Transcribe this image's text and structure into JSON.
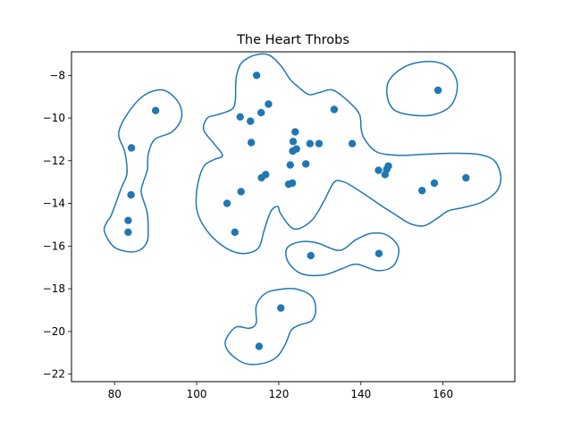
{
  "chart_data": {
    "type": "scatter",
    "title": "The Heart Throbs",
    "xlabel": "",
    "ylabel": "",
    "xlim": [
      69.5,
      177.5
    ],
    "ylim": [
      -22.35,
      -6.9
    ],
    "xticks": [
      80,
      100,
      120,
      140,
      160
    ],
    "yticks": [
      -8,
      -10,
      -12,
      -14,
      -16,
      -18,
      -20,
      -22
    ],
    "grid": false,
    "point_color": "#1f77b4",
    "contour_color": "#1f77b4",
    "points": [
      {
        "x": 114.6,
        "y": -8.0
      },
      {
        "x": 90.0,
        "y": -9.65
      },
      {
        "x": 158.8,
        "y": -8.7
      },
      {
        "x": 110.6,
        "y": -9.95
      },
      {
        "x": 113.1,
        "y": -10.15
      },
      {
        "x": 115.7,
        "y": -9.75
      },
      {
        "x": 117.5,
        "y": -9.35
      },
      {
        "x": 133.5,
        "y": -9.6
      },
      {
        "x": 84.1,
        "y": -11.4
      },
      {
        "x": 113.3,
        "y": -11.15
      },
      {
        "x": 124.0,
        "y": -10.65
      },
      {
        "x": 123.5,
        "y": -11.1
      },
      {
        "x": 123.4,
        "y": -11.55
      },
      {
        "x": 124.3,
        "y": -11.45
      },
      {
        "x": 127.6,
        "y": -11.2
      },
      {
        "x": 129.8,
        "y": -11.2
      },
      {
        "x": 137.9,
        "y": -11.2
      },
      {
        "x": 122.8,
        "y": -12.2
      },
      {
        "x": 126.6,
        "y": -12.15
      },
      {
        "x": 146.7,
        "y": -12.25
      },
      {
        "x": 146.3,
        "y": -12.4
      },
      {
        "x": 144.3,
        "y": -12.45
      },
      {
        "x": 145.9,
        "y": -12.65
      },
      {
        "x": 116.8,
        "y": -12.65
      },
      {
        "x": 115.8,
        "y": -12.8
      },
      {
        "x": 123.3,
        "y": -13.05
      },
      {
        "x": 122.4,
        "y": -13.1
      },
      {
        "x": 157.9,
        "y": -13.05
      },
      {
        "x": 165.6,
        "y": -12.8
      },
      {
        "x": 154.9,
        "y": -13.4
      },
      {
        "x": 84.0,
        "y": -13.6
      },
      {
        "x": 110.8,
        "y": -13.45
      },
      {
        "x": 107.4,
        "y": -14.0
      },
      {
        "x": 83.3,
        "y": -14.8
      },
      {
        "x": 83.3,
        "y": -15.35
      },
      {
        "x": 109.3,
        "y": -15.35
      },
      {
        "x": 127.8,
        "y": -16.45
      },
      {
        "x": 144.4,
        "y": -16.35
      },
      {
        "x": 120.5,
        "y": -18.9
      },
      {
        "x": 115.2,
        "y": -20.7
      }
    ],
    "contours": [
      [
        [
          79.2,
          -14.55
        ],
        [
          81.6,
          -13.3
        ],
        [
          83.0,
          -12.6
        ],
        [
          82.5,
          -11.6
        ],
        [
          81.0,
          -10.7
        ],
        [
          83.5,
          -9.7
        ],
        [
          87.5,
          -8.9
        ],
        [
          92.0,
          -8.7
        ],
        [
          95.5,
          -9.25
        ],
        [
          96.3,
          -10.0
        ],
        [
          94.0,
          -10.65
        ],
        [
          89.8,
          -11.0
        ],
        [
          88.2,
          -11.7
        ],
        [
          88.0,
          -12.4
        ],
        [
          87.0,
          -13.0
        ],
        [
          86.5,
          -13.5
        ],
        [
          87.9,
          -14.4
        ],
        [
          88.2,
          -15.2
        ],
        [
          87.9,
          -15.8
        ],
        [
          86.0,
          -16.2
        ],
        [
          82.8,
          -16.25
        ],
        [
          79.6,
          -16.0
        ],
        [
          77.5,
          -15.3
        ],
        [
          78.2,
          -14.85
        ],
        [
          79.2,
          -14.55
        ]
      ],
      [
        [
          147.0,
          -8.2
        ],
        [
          151.2,
          -7.55
        ],
        [
          157.0,
          -7.35
        ],
        [
          161.5,
          -7.65
        ],
        [
          163.5,
          -8.45
        ],
        [
          162.0,
          -9.4
        ],
        [
          157.5,
          -9.85
        ],
        [
          152.0,
          -9.85
        ],
        [
          148.0,
          -9.6
        ],
        [
          146.4,
          -8.95
        ],
        [
          147.0,
          -8.2
        ]
      ],
      [
        [
          108.5,
          -9.6
        ],
        [
          109.4,
          -9.2
        ],
        [
          109.5,
          -8.45
        ],
        [
          109.8,
          -7.95
        ],
        [
          111.0,
          -7.4
        ],
        [
          114.2,
          -7.05
        ],
        [
          117.6,
          -7.05
        ],
        [
          120.5,
          -7.55
        ],
        [
          122.8,
          -8.2
        ],
        [
          124.8,
          -8.55
        ],
        [
          127.3,
          -8.9
        ],
        [
          130.0,
          -8.8
        ],
        [
          133.3,
          -8.7
        ],
        [
          137.4,
          -9.3
        ],
        [
          139.7,
          -9.85
        ],
        [
          140.1,
          -10.55
        ],
        [
          141.1,
          -11.05
        ],
        [
          144.0,
          -11.6
        ],
        [
          149.3,
          -11.75
        ],
        [
          155.2,
          -11.7
        ],
        [
          162.0,
          -11.65
        ],
        [
          168.5,
          -11.7
        ],
        [
          172.5,
          -12.0
        ],
        [
          174.1,
          -12.75
        ],
        [
          173.0,
          -13.45
        ],
        [
          169.4,
          -13.95
        ],
        [
          164.8,
          -14.2
        ],
        [
          161.3,
          -14.35
        ],
        [
          158.6,
          -14.7
        ],
        [
          155.4,
          -15.05
        ],
        [
          152.0,
          -14.95
        ],
        [
          148.6,
          -14.55
        ],
        [
          145.3,
          -14.15
        ],
        [
          141.5,
          -13.65
        ],
        [
          138.3,
          -13.25
        ],
        [
          135.9,
          -13.0
        ],
        [
          133.5,
          -13.0
        ],
        [
          131.0,
          -13.9
        ],
        [
          128.0,
          -14.8
        ],
        [
          123.8,
          -15.2
        ],
        [
          120.5,
          -14.5
        ],
        [
          119.8,
          -14.15
        ],
        [
          118.3,
          -14.3
        ],
        [
          117.2,
          -14.8
        ],
        [
          116.3,
          -15.35
        ],
        [
          115.0,
          -16.1
        ],
        [
          111.4,
          -16.35
        ],
        [
          107.2,
          -16.1
        ],
        [
          103.0,
          -15.4
        ],
        [
          100.3,
          -14.5
        ],
        [
          99.9,
          -13.65
        ],
        [
          100.7,
          -12.75
        ],
        [
          102.0,
          -12.2
        ],
        [
          104.2,
          -11.95
        ],
        [
          106.3,
          -11.75
        ],
        [
          104.2,
          -11.2
        ],
        [
          101.7,
          -10.55
        ],
        [
          102.6,
          -10.0
        ],
        [
          105.0,
          -9.85
        ],
        [
          108.5,
          -9.6
        ]
      ],
      [
        [
          129.3,
          -15.85
        ],
        [
          134.8,
          -16.2
        ],
        [
          138.8,
          -15.7
        ],
        [
          142.6,
          -15.4
        ],
        [
          146.5,
          -15.5
        ],
        [
          149.2,
          -16.1
        ],
        [
          148.0,
          -16.9
        ],
        [
          144.2,
          -17.15
        ],
        [
          139.0,
          -16.85
        ],
        [
          135.5,
          -17.05
        ],
        [
          131.0,
          -17.35
        ],
        [
          125.6,
          -17.3
        ],
        [
          122.3,
          -16.75
        ],
        [
          122.0,
          -16.1
        ],
        [
          125.2,
          -15.8
        ],
        [
          129.3,
          -15.85
        ]
      ],
      [
        [
          119.5,
          -18.05
        ],
        [
          124.0,
          -18.0
        ],
        [
          128.0,
          -18.35
        ],
        [
          129.0,
          -19.0
        ],
        [
          128.0,
          -19.5
        ],
        [
          125.0,
          -19.7
        ],
        [
          123.0,
          -19.95
        ],
        [
          121.6,
          -20.6
        ],
        [
          119.5,
          -21.2
        ],
        [
          116.0,
          -21.5
        ],
        [
          111.8,
          -21.5
        ],
        [
          108.0,
          -21.0
        ],
        [
          107.0,
          -20.45
        ],
        [
          109.5,
          -19.8
        ],
        [
          112.8,
          -19.85
        ],
        [
          114.5,
          -19.6
        ],
        [
          114.5,
          -18.8
        ],
        [
          116.5,
          -18.25
        ],
        [
          119.5,
          -18.05
        ]
      ]
    ]
  }
}
